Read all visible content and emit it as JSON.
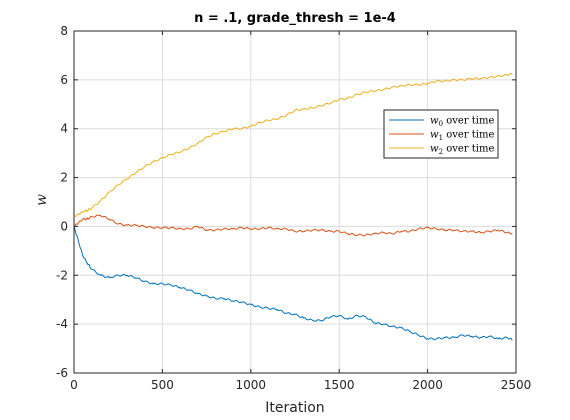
{
  "chart_data": {
    "type": "line",
    "title": "n = .1, grade_thresh = 1e-4",
    "xlabel": "Iteration",
    "ylabel": "w",
    "xlim": [
      0,
      2500
    ],
    "ylim": [
      -6,
      8
    ],
    "xticks": [
      0,
      500,
      1000,
      1500,
      2000,
      2500
    ],
    "yticks": [
      -6,
      -4,
      -2,
      0,
      2,
      4,
      6,
      8
    ],
    "grid": true,
    "legend_position": "top-right",
    "series": [
      {
        "name": "w",
        "subscript": "0",
        "name_suffix": " over time",
        "color": "#0072BD",
        "x": [
          0,
          25,
          50,
          75,
          100,
          150,
          200,
          250,
          300,
          350,
          400,
          450,
          500,
          550,
          600,
          650,
          700,
          750,
          800,
          850,
          900,
          950,
          1000,
          1050,
          1100,
          1150,
          1200,
          1250,
          1300,
          1350,
          1400,
          1450,
          1500,
          1550,
          1600,
          1650,
          1700,
          1750,
          1800,
          1850,
          1900,
          1950,
          2000,
          2050,
          2100,
          2150,
          2200,
          2250,
          2300,
          2350,
          2400,
          2450,
          2480
        ],
        "y": [
          0,
          -0.6,
          -1.2,
          -1.5,
          -1.75,
          -2.0,
          -2.1,
          -2.0,
          -2.0,
          -2.1,
          -2.25,
          -2.35,
          -2.35,
          -2.4,
          -2.5,
          -2.6,
          -2.75,
          -2.85,
          -2.95,
          -2.95,
          -3.05,
          -3.1,
          -3.2,
          -3.3,
          -3.35,
          -3.4,
          -3.55,
          -3.6,
          -3.75,
          -3.85,
          -3.85,
          -3.7,
          -3.65,
          -3.8,
          -3.65,
          -3.7,
          -3.95,
          -4.0,
          -4.1,
          -4.15,
          -4.3,
          -4.45,
          -4.6,
          -4.6,
          -4.55,
          -4.55,
          -4.45,
          -4.5,
          -4.55,
          -4.5,
          -4.6,
          -4.55,
          -4.65
        ]
      },
      {
        "name": "w",
        "subscript": "1",
        "name_suffix": " over time",
        "color": "#D95319",
        "x": [
          0,
          25,
          50,
          75,
          100,
          150,
          200,
          250,
          300,
          350,
          400,
          450,
          500,
          550,
          600,
          650,
          700,
          750,
          800,
          850,
          900,
          950,
          1000,
          1050,
          1100,
          1150,
          1200,
          1250,
          1300,
          1350,
          1400,
          1450,
          1500,
          1550,
          1600,
          1650,
          1700,
          1750,
          1800,
          1850,
          1900,
          1950,
          2000,
          2050,
          2100,
          2150,
          2200,
          2250,
          2300,
          2350,
          2400,
          2450,
          2480
        ],
        "y": [
          0,
          0.15,
          0.3,
          0.3,
          0.4,
          0.45,
          0.3,
          0.1,
          0.05,
          0.05,
          0.0,
          -0.05,
          -0.05,
          -0.05,
          -0.1,
          -0.1,
          0.0,
          -0.15,
          -0.15,
          -0.1,
          -0.1,
          -0.05,
          -0.1,
          -0.1,
          -0.05,
          -0.1,
          -0.1,
          -0.2,
          -0.2,
          -0.15,
          -0.15,
          -0.2,
          -0.2,
          -0.3,
          -0.35,
          -0.35,
          -0.3,
          -0.25,
          -0.3,
          -0.2,
          -0.2,
          -0.1,
          -0.05,
          -0.1,
          -0.15,
          -0.15,
          -0.2,
          -0.2,
          -0.25,
          -0.2,
          -0.15,
          -0.25,
          -0.3
        ]
      },
      {
        "name": "w",
        "subscript": "2",
        "name_suffix": " over time",
        "color": "#EDB120",
        "x": [
          0,
          25,
          50,
          75,
          100,
          150,
          200,
          250,
          300,
          350,
          400,
          450,
          500,
          550,
          600,
          650,
          700,
          750,
          800,
          850,
          900,
          950,
          1000,
          1050,
          1100,
          1150,
          1200,
          1250,
          1300,
          1350,
          1400,
          1450,
          1500,
          1550,
          1600,
          1650,
          1700,
          1750,
          1800,
          1850,
          1900,
          1950,
          2000,
          2050,
          2100,
          2150,
          2200,
          2250,
          2300,
          2350,
          2400,
          2450,
          2480
        ],
        "y": [
          0.4,
          0.5,
          0.6,
          0.65,
          0.75,
          1.05,
          1.4,
          1.7,
          1.95,
          2.2,
          2.45,
          2.65,
          2.8,
          2.95,
          3.05,
          3.2,
          3.4,
          3.65,
          3.8,
          3.9,
          4.0,
          4.0,
          4.1,
          4.25,
          4.35,
          4.4,
          4.55,
          4.75,
          4.8,
          4.85,
          4.95,
          5.05,
          5.2,
          5.25,
          5.4,
          5.5,
          5.55,
          5.6,
          5.7,
          5.75,
          5.8,
          5.8,
          5.85,
          5.95,
          5.95,
          6.0,
          6.0,
          6.05,
          6.05,
          6.1,
          6.15,
          6.2,
          6.25
        ]
      }
    ]
  }
}
